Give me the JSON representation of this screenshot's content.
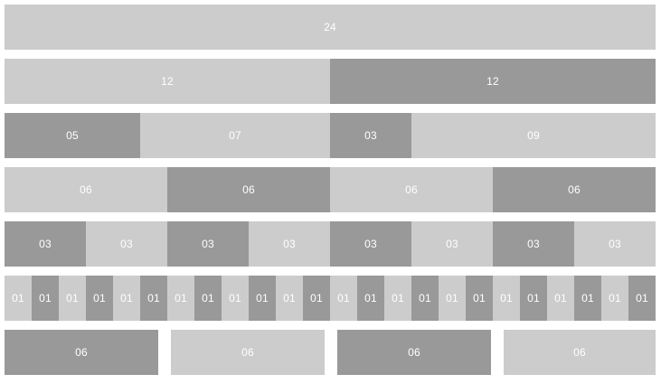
{
  "colors": {
    "light": "#cccccc",
    "dark": "#999999",
    "text": "#ffffff",
    "background": "#ffffff"
  },
  "rows": [
    {
      "gutter": false,
      "cells": [
        {
          "label": "24",
          "span": 24,
          "tone": "light"
        }
      ]
    },
    {
      "gutter": false,
      "cells": [
        {
          "label": "12",
          "span": 12,
          "tone": "light"
        },
        {
          "label": "12",
          "span": 12,
          "tone": "dark"
        }
      ]
    },
    {
      "gutter": false,
      "cells": [
        {
          "label": "05",
          "span": 5,
          "tone": "dark"
        },
        {
          "label": "07",
          "span": 7,
          "tone": "light"
        },
        {
          "label": "03",
          "span": 3,
          "tone": "dark"
        },
        {
          "label": "09",
          "span": 9,
          "tone": "light"
        }
      ]
    },
    {
      "gutter": false,
      "cells": [
        {
          "label": "06",
          "span": 6,
          "tone": "light"
        },
        {
          "label": "06",
          "span": 6,
          "tone": "dark"
        },
        {
          "label": "06",
          "span": 6,
          "tone": "light"
        },
        {
          "label": "06",
          "span": 6,
          "tone": "dark"
        }
      ]
    },
    {
      "gutter": false,
      "cells": [
        {
          "label": "03",
          "span": 3,
          "tone": "dark"
        },
        {
          "label": "03",
          "span": 3,
          "tone": "light"
        },
        {
          "label": "03",
          "span": 3,
          "tone": "dark"
        },
        {
          "label": "03",
          "span": 3,
          "tone": "light"
        },
        {
          "label": "03",
          "span": 3,
          "tone": "dark"
        },
        {
          "label": "03",
          "span": 3,
          "tone": "light"
        },
        {
          "label": "03",
          "span": 3,
          "tone": "dark"
        },
        {
          "label": "03",
          "span": 3,
          "tone": "light"
        }
      ]
    },
    {
      "gutter": false,
      "cells": [
        {
          "label": "01",
          "span": 1,
          "tone": "light"
        },
        {
          "label": "01",
          "span": 1,
          "tone": "dark"
        },
        {
          "label": "01",
          "span": 1,
          "tone": "light"
        },
        {
          "label": "01",
          "span": 1,
          "tone": "dark"
        },
        {
          "label": "01",
          "span": 1,
          "tone": "light"
        },
        {
          "label": "01",
          "span": 1,
          "tone": "dark"
        },
        {
          "label": "01",
          "span": 1,
          "tone": "light"
        },
        {
          "label": "01",
          "span": 1,
          "tone": "dark"
        },
        {
          "label": "01",
          "span": 1,
          "tone": "light"
        },
        {
          "label": "01",
          "span": 1,
          "tone": "dark"
        },
        {
          "label": "01",
          "span": 1,
          "tone": "light"
        },
        {
          "label": "01",
          "span": 1,
          "tone": "dark"
        },
        {
          "label": "01",
          "span": 1,
          "tone": "light"
        },
        {
          "label": "01",
          "span": 1,
          "tone": "dark"
        },
        {
          "label": "01",
          "span": 1,
          "tone": "light"
        },
        {
          "label": "01",
          "span": 1,
          "tone": "dark"
        },
        {
          "label": "01",
          "span": 1,
          "tone": "light"
        },
        {
          "label": "01",
          "span": 1,
          "tone": "dark"
        },
        {
          "label": "01",
          "span": 1,
          "tone": "light"
        },
        {
          "label": "01",
          "span": 1,
          "tone": "dark"
        },
        {
          "label": "01",
          "span": 1,
          "tone": "light"
        },
        {
          "label": "01",
          "span": 1,
          "tone": "dark"
        },
        {
          "label": "01",
          "span": 1,
          "tone": "light"
        },
        {
          "label": "01",
          "span": 1,
          "tone": "dark"
        }
      ]
    },
    {
      "gutter": true,
      "cells": [
        {
          "label": "06",
          "span": 6,
          "tone": "dark"
        },
        {
          "label": "06",
          "span": 6,
          "tone": "light"
        },
        {
          "label": "06",
          "span": 6,
          "tone": "dark"
        },
        {
          "label": "06",
          "span": 6,
          "tone": "light"
        }
      ]
    }
  ]
}
